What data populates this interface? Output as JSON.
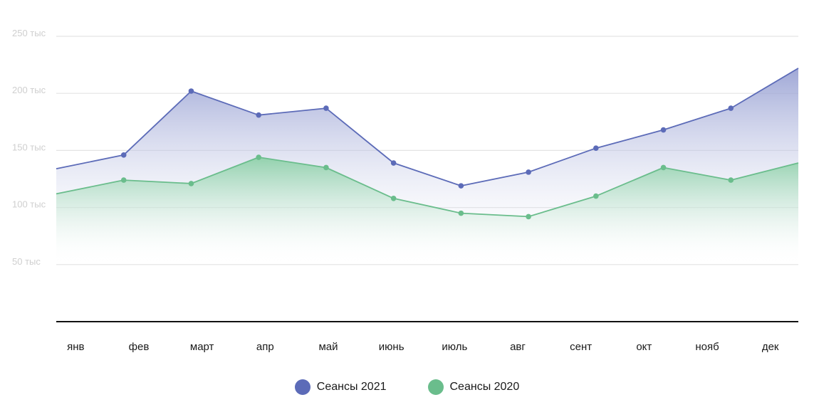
{
  "chart_data": {
    "type": "area",
    "categories": [
      "янв",
      "фев",
      "март",
      "апр",
      "май",
      "июнь",
      "июль",
      "авг",
      "сент",
      "окт",
      "нояб",
      "дек"
    ],
    "y_ticks": [
      {
        "value": 50,
        "label": "50 тыс"
      },
      {
        "value": 100,
        "label": "100 тыс"
      },
      {
        "value": 150,
        "label": "150 тыс"
      },
      {
        "value": 200,
        "label": "200 тыс"
      },
      {
        "value": 250,
        "label": "250 тыс"
      }
    ],
    "ylim": [
      0,
      250
    ],
    "grid": true,
    "legend_position": "bottom-center",
    "series": [
      {
        "name": "Сеансы 2021",
        "color": "#5c6bb8",
        "values": [
          134,
          146,
          202,
          181,
          187,
          139,
          119,
          131,
          152,
          168,
          187,
          222
        ]
      },
      {
        "name": "Сеансы 2020",
        "color": "#6abd8c",
        "values": [
          112,
          124,
          121,
          144,
          135,
          108,
          95,
          92,
          110,
          135,
          124,
          139
        ]
      }
    ]
  }
}
